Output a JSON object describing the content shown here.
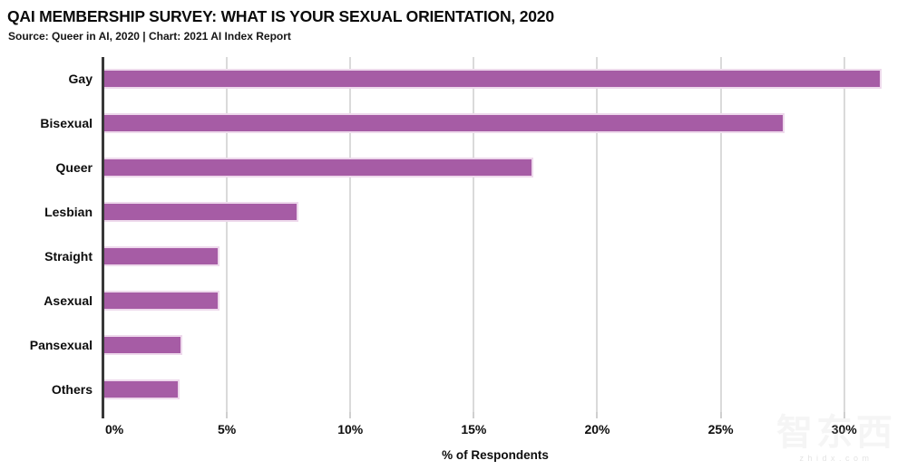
{
  "header": {
    "title": "QAI MEMBERSHIP SURVEY: WHAT IS YOUR SEXUAL ORIENTATION, 2020",
    "source_line": "Source: Queer in AI, 2020 | Chart: 2021 AI Index Report"
  },
  "watermark": {
    "logo_text": "智东西",
    "site_text": "zhidx.com"
  },
  "chart_data": {
    "type": "bar",
    "orientation": "horizontal",
    "title": "QAI MEMBERSHIP SURVEY: WHAT IS YOUR SEXUAL ORIENTATION, 2020",
    "subtitle": "Source: Queer in AI, 2020 | Chart: 2021 AI Index Report",
    "categories": [
      "Gay",
      "Bisexual",
      "Queer",
      "Lesbian",
      "Straight",
      "Asexual",
      "Pansexual",
      "Others"
    ],
    "values": [
      31.5,
      27.6,
      17.4,
      7.9,
      4.7,
      4.7,
      3.2,
      3.1
    ],
    "xlabel": "% of Respondents",
    "ylabel": "",
    "x_ticks": [
      {
        "value": 0,
        "label": "0%"
      },
      {
        "value": 5,
        "label": "5%"
      },
      {
        "value": 10,
        "label": "10%"
      },
      {
        "value": 15,
        "label": "15%"
      },
      {
        "value": 20,
        "label": "20%"
      },
      {
        "value": 25,
        "label": "25%"
      },
      {
        "value": 30,
        "label": "30%"
      }
    ],
    "xlim": [
      0,
      31.7
    ],
    "grid": true,
    "legend_position": "none",
    "colors": {
      "bar_fill": "#a65ca5",
      "bar_border": "#eed9ec",
      "gridline": "#dadada",
      "axis_line": "#383838",
      "text": "#0d0d0d"
    }
  }
}
